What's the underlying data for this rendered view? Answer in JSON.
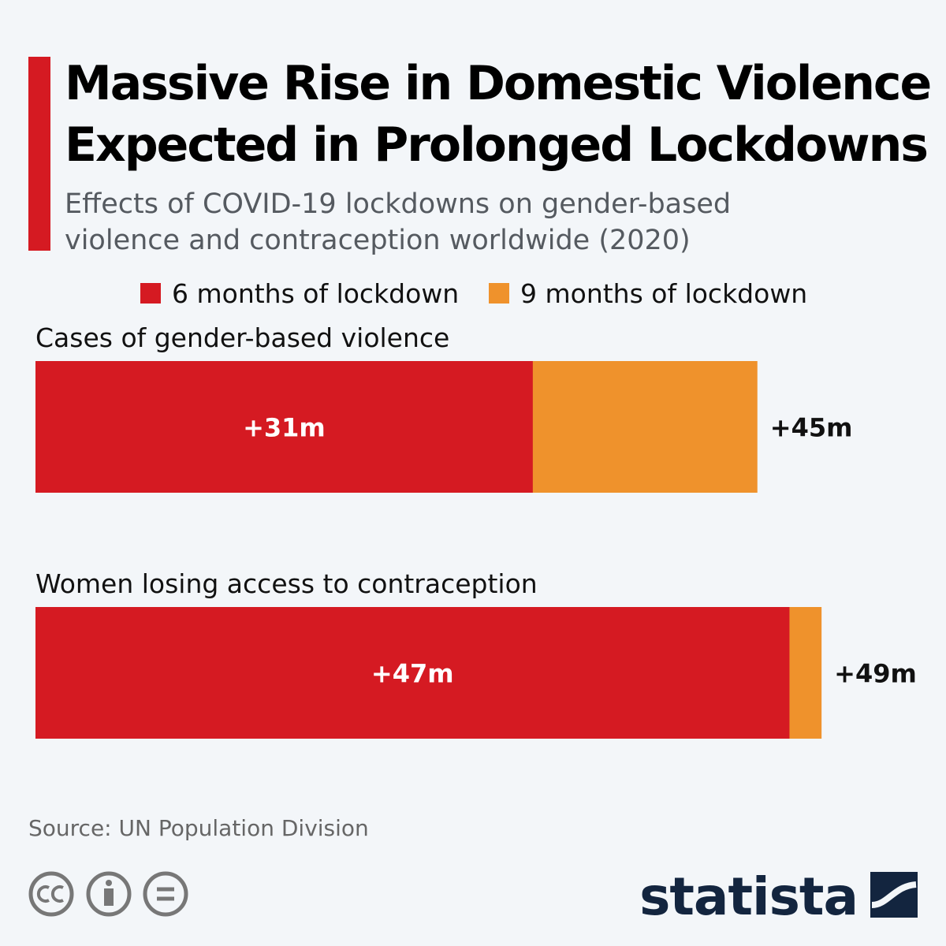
{
  "chart_data": {
    "type": "bar",
    "orientation": "horizontal",
    "overlap": true,
    "title": [
      "Massive Rise in Domestic Violence",
      "Expected in Prolonged Lockdowns"
    ],
    "subtitle": [
      "Effects of COVID-19 lockdowns on gender-based",
      "violence and contraception worldwide (2020)"
    ],
    "categories": [
      "Cases of gender-based violence",
      "Women losing access to contraception"
    ],
    "series": [
      {
        "name": "6 months of lockdown",
        "color": "#d51a22",
        "values": [
          31,
          47
        ],
        "value_labels": [
          "+31m",
          "+47m"
        ]
      },
      {
        "name": "9 months of lockdown",
        "color": "#ef922c",
        "values": [
          45,
          49
        ],
        "value_labels": [
          "+45m",
          "+49m"
        ]
      }
    ],
    "source": "Source: UN Population Division",
    "brand": "statista"
  }
}
